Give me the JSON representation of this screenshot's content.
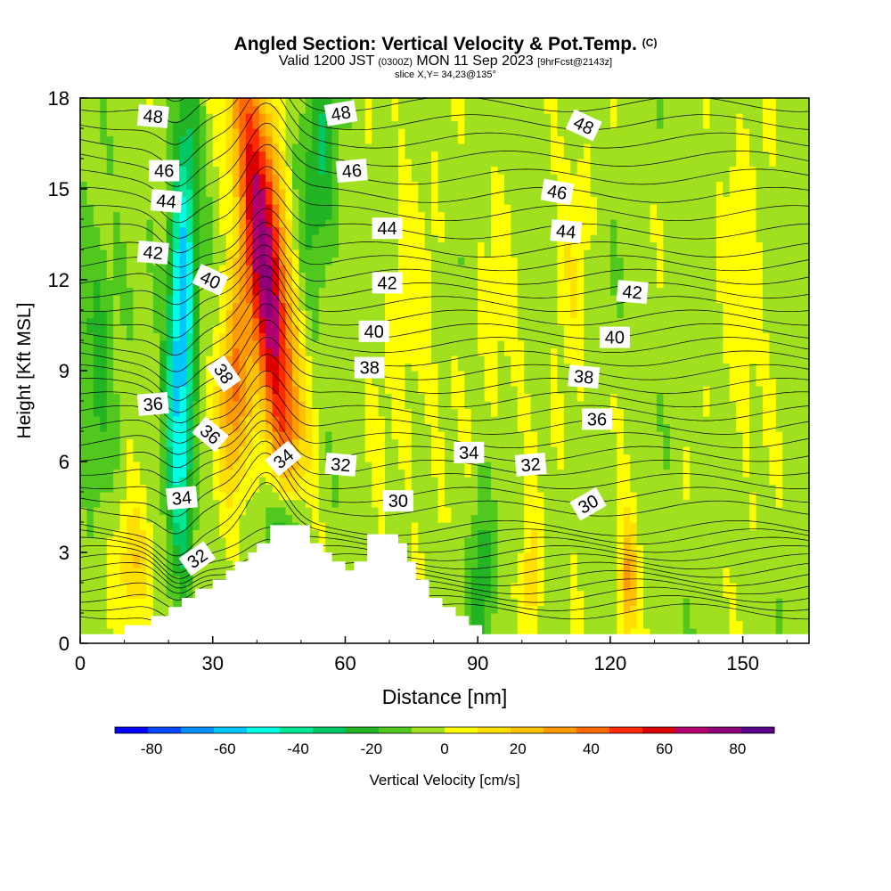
{
  "title": {
    "main": "Angled Section: Vertical Velocity & Pot.Temp.",
    "units_tag": "(C)",
    "valid_prefix": "Valid 1200 JST",
    "valid_zulu": "(0300Z)",
    "valid_date": "MON 11 Sep 2023",
    "forecast_tag": "[9hrFcst@2143z]",
    "slice": "slice X,Y= 34,23@135°"
  },
  "chart_data": {
    "type": "heatmap",
    "xlabel": "Distance [nm]",
    "ylabel": "Height [Kft MSL]",
    "xlim": [
      0,
      165
    ],
    "ylim": [
      0,
      18
    ],
    "x_ticks": [
      0,
      30,
      60,
      90,
      120,
      150
    ],
    "y_ticks": [
      0,
      3,
      6,
      9,
      12,
      15,
      18
    ],
    "colorbar": {
      "label": "Vertical Velocity [cm/s]",
      "ticks": [
        -80,
        -60,
        -40,
        -20,
        0,
        20,
        40,
        60,
        80
      ],
      "range": [
        -90,
        90
      ],
      "step": 10,
      "colors": [
        "#0000ff",
        "#0048ff",
        "#0090ff",
        "#00c8ff",
        "#00ffe6",
        "#00e896",
        "#00c864",
        "#22b422",
        "#50c81e",
        "#a0e01e",
        "#ffff00",
        "#ffe000",
        "#ffc000",
        "#ff9a00",
        "#ff6a00",
        "#ff2a00",
        "#dc0000",
        "#b4006e",
        "#8c0078",
        "#5a008c"
      ]
    },
    "terrain_profile": [
      [
        0,
        0.3
      ],
      [
        10,
        0.3
      ],
      [
        10,
        0.6
      ],
      [
        16,
        0.6
      ],
      [
        16,
        0.9
      ],
      [
        20,
        0.9
      ],
      [
        20,
        1.2
      ],
      [
        23,
        1.2
      ],
      [
        23,
        1.5
      ],
      [
        26,
        1.5
      ],
      [
        26,
        1.8
      ],
      [
        30,
        1.8
      ],
      [
        30,
        2.1
      ],
      [
        33,
        2.1
      ],
      [
        33,
        2.4
      ],
      [
        35,
        2.4
      ],
      [
        35,
        2.7
      ],
      [
        38,
        2.7
      ],
      [
        38,
        3.0
      ],
      [
        40,
        3.0
      ],
      [
        40,
        3.3
      ],
      [
        43,
        3.3
      ],
      [
        43,
        3.6
      ],
      [
        43,
        3.9
      ],
      [
        52,
        3.9
      ],
      [
        52,
        3.3
      ],
      [
        55,
        3.3
      ],
      [
        55,
        3.0
      ],
      [
        57,
        3.0
      ],
      [
        57,
        2.7
      ],
      [
        60,
        2.7
      ],
      [
        60,
        2.4
      ],
      [
        62,
        2.4
      ],
      [
        62,
        2.7
      ],
      [
        65,
        2.7
      ],
      [
        65,
        3.6
      ],
      [
        72,
        3.6
      ],
      [
        72,
        3.3
      ],
      [
        74,
        3.3
      ],
      [
        74,
        2.7
      ],
      [
        76,
        2.7
      ],
      [
        76,
        2.1
      ],
      [
        79,
        2.1
      ],
      [
        79,
        1.5
      ],
      [
        82,
        1.5
      ],
      [
        82,
        1.2
      ],
      [
        85,
        1.2
      ],
      [
        85,
        0.9
      ],
      [
        88,
        0.9
      ],
      [
        88,
        0.6
      ],
      [
        91,
        0.6
      ],
      [
        91,
        0.3
      ],
      [
        165,
        0.3
      ]
    ],
    "velocity_features": [
      {
        "x": 42,
        "y": 12.5,
        "sx": 3.5,
        "sy": 5.5,
        "shear": -0.7,
        "value": 85
      },
      {
        "x": 35,
        "y": 8.5,
        "sx": 2.5,
        "sy": 2.5,
        "shear": 0,
        "value": 45
      },
      {
        "x": 23,
        "y": 11.5,
        "sx": 2.2,
        "sy": 4,
        "shear": 0.2,
        "value": -65
      },
      {
        "x": 23,
        "y": 4.5,
        "sx": 2,
        "sy": 3,
        "shear": 0,
        "value": -25
      },
      {
        "x": 47,
        "y": 3.8,
        "sx": 3,
        "sy": 1.2,
        "shear": 0,
        "value": -40
      },
      {
        "x": 54,
        "y": 16,
        "sx": 3,
        "sy": 3,
        "shear": 0,
        "value": -25
      },
      {
        "x": 12,
        "y": 2.5,
        "sx": 3,
        "sy": 1.5,
        "shear": 0,
        "value": 25
      },
      {
        "x": 4,
        "y": 10,
        "sx": 3,
        "sy": 3,
        "shear": 0,
        "value": -20
      },
      {
        "x": 91,
        "y": 2.0,
        "sx": 2,
        "sy": 2,
        "shear": 0,
        "value": -25
      },
      {
        "x": 102,
        "y": 2.0,
        "sx": 1.5,
        "sy": 1.5,
        "shear": 0,
        "value": 25
      },
      {
        "x": 124,
        "y": 2.0,
        "sx": 1.5,
        "sy": 1.5,
        "shear": 0,
        "value": 40
      },
      {
        "x": 111,
        "y": 12,
        "sx": 3,
        "sy": 5,
        "shear": 0,
        "value": 10
      },
      {
        "x": 150,
        "y": 12,
        "sx": 4,
        "sy": 5,
        "shear": 0,
        "value": 10
      },
      {
        "x": 75,
        "y": 10,
        "sx": 6,
        "sy": 5,
        "shear": 0,
        "value": 8
      },
      {
        "x": 95,
        "y": 10,
        "sx": 4,
        "sy": 4,
        "shear": 0,
        "value": 7
      }
    ],
    "theta_label_values": [
      30,
      32,
      34,
      36,
      38,
      40,
      42,
      44,
      46,
      48
    ],
    "contour_labels": [
      {
        "text": "48",
        "x": 16.5,
        "y": 17.4,
        "angle": 5
      },
      {
        "text": "46",
        "x": 19,
        "y": 15.6,
        "angle": 0
      },
      {
        "text": "44",
        "x": 19.5,
        "y": 14.6,
        "angle": 5
      },
      {
        "text": "42",
        "x": 16.5,
        "y": 12.9,
        "angle": 5
      },
      {
        "text": "40",
        "x": 29.5,
        "y": 12,
        "angle": 25
      },
      {
        "text": "38",
        "x": 32.5,
        "y": 8.9,
        "angle": 55
      },
      {
        "text": "36",
        "x": 16.5,
        "y": 7.9,
        "angle": -5
      },
      {
        "text": "36",
        "x": 29.5,
        "y": 6.9,
        "angle": 40
      },
      {
        "text": "34",
        "x": 23,
        "y": 4.8,
        "angle": -5
      },
      {
        "text": "32",
        "x": 26.5,
        "y": 2.8,
        "angle": -35
      },
      {
        "text": "34",
        "x": 46,
        "y": 6.1,
        "angle": -40
      },
      {
        "text": "32",
        "x": 59,
        "y": 5.9,
        "angle": 5
      },
      {
        "text": "30",
        "x": 72,
        "y": 4.7,
        "angle": 0
      },
      {
        "text": "48",
        "x": 59,
        "y": 17.5,
        "angle": -10
      },
      {
        "text": "46",
        "x": 61.5,
        "y": 15.6,
        "angle": -5
      },
      {
        "text": "44",
        "x": 69.5,
        "y": 13.7,
        "angle": 0
      },
      {
        "text": "42",
        "x": 69.5,
        "y": 11.9,
        "angle": 0
      },
      {
        "text": "40",
        "x": 66.5,
        "y": 10.3,
        "angle": 0
      },
      {
        "text": "38",
        "x": 65.5,
        "y": 9.1,
        "angle": 0
      },
      {
        "text": "34",
        "x": 88,
        "y": 6.3,
        "angle": 0
      },
      {
        "text": "32",
        "x": 102,
        "y": 5.9,
        "angle": -5
      },
      {
        "text": "30",
        "x": 115,
        "y": 4.6,
        "angle": -30
      },
      {
        "text": "48",
        "x": 114,
        "y": 17.1,
        "angle": 25
      },
      {
        "text": "46",
        "x": 108,
        "y": 14.9,
        "angle": 10
      },
      {
        "text": "44",
        "x": 110,
        "y": 13.6,
        "angle": 5
      },
      {
        "text": "42",
        "x": 125,
        "y": 11.6,
        "angle": 5
      },
      {
        "text": "40",
        "x": 121,
        "y": 10.1,
        "angle": 0
      },
      {
        "text": "38",
        "x": 114,
        "y": 8.8,
        "angle": 5
      },
      {
        "text": "36",
        "x": 117,
        "y": 7.4,
        "angle": 0
      }
    ]
  }
}
